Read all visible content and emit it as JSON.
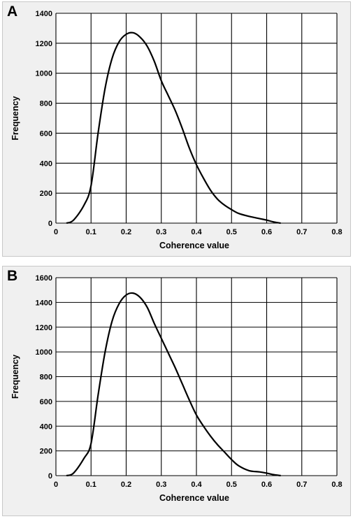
{
  "panels": [
    {
      "label": "A",
      "chart_data": {
        "type": "line",
        "title": "",
        "xlabel": "Coherence value",
        "ylabel": "Frequency",
        "xlim": [
          0,
          0.8
        ],
        "ylim": [
          0,
          1400
        ],
        "x_ticks": [
          "0",
          "0.1",
          "0.2",
          "0.3",
          "0.4",
          "0.5",
          "0.6",
          "0.7",
          "0.8"
        ],
        "y_ticks": [
          "0",
          "200",
          "400",
          "600",
          "800",
          "1000",
          "1200",
          "1400"
        ],
        "grid": true,
        "series": [
          {
            "color": "#000000",
            "points": [
              [
                0.03,
                0
              ],
              [
                0.05,
                20
              ],
              [
                0.08,
                120
              ],
              [
                0.1,
                250
              ],
              [
                0.12,
                600
              ],
              [
                0.14,
                900
              ],
              [
                0.16,
                1100
              ],
              [
                0.18,
                1210
              ],
              [
                0.2,
                1260
              ],
              [
                0.22,
                1270
              ],
              [
                0.24,
                1240
              ],
              [
                0.26,
                1180
              ],
              [
                0.28,
                1080
              ],
              [
                0.3,
                950
              ],
              [
                0.32,
                850
              ],
              [
                0.34,
                750
              ],
              [
                0.36,
                630
              ],
              [
                0.38,
                500
              ],
              [
                0.4,
                390
              ],
              [
                0.42,
                300
              ],
              [
                0.44,
                220
              ],
              [
                0.46,
                160
              ],
              [
                0.48,
                120
              ],
              [
                0.5,
                90
              ],
              [
                0.52,
                65
              ],
              [
                0.55,
                45
              ],
              [
                0.58,
                30
              ],
              [
                0.6,
                20
              ],
              [
                0.62,
                8
              ],
              [
                0.64,
                0
              ]
            ]
          }
        ]
      }
    },
    {
      "label": "B",
      "chart_data": {
        "type": "line",
        "title": "",
        "xlabel": "Coherence value",
        "ylabel": "Frequency",
        "xlim": [
          0,
          0.8
        ],
        "ylim": [
          0,
          1600
        ],
        "x_ticks": [
          "0",
          "0.1",
          "0.2",
          "0.3",
          "0.4",
          "0.5",
          "0.6",
          "0.7",
          "0.8"
        ],
        "y_ticks": [
          "0",
          "200",
          "400",
          "600",
          "800",
          "1000",
          "1200",
          "1400",
          "1600"
        ],
        "grid": true,
        "series": [
          {
            "color": "#000000",
            "points": [
              [
                0.03,
                0
              ],
              [
                0.05,
                20
              ],
              [
                0.08,
                140
              ],
              [
                0.1,
                260
              ],
              [
                0.12,
                650
              ],
              [
                0.14,
                1000
              ],
              [
                0.16,
                1250
              ],
              [
                0.18,
                1390
              ],
              [
                0.2,
                1460
              ],
              [
                0.22,
                1475
              ],
              [
                0.24,
                1440
              ],
              [
                0.26,
                1360
              ],
              [
                0.28,
                1230
              ],
              [
                0.3,
                1110
              ],
              [
                0.32,
                990
              ],
              [
                0.34,
                870
              ],
              [
                0.36,
                740
              ],
              [
                0.38,
                610
              ],
              [
                0.4,
                490
              ],
              [
                0.42,
                400
              ],
              [
                0.44,
                320
              ],
              [
                0.46,
                250
              ],
              [
                0.48,
                190
              ],
              [
                0.5,
                130
              ],
              [
                0.52,
                80
              ],
              [
                0.55,
                40
              ],
              [
                0.58,
                30
              ],
              [
                0.6,
                20
              ],
              [
                0.62,
                8
              ],
              [
                0.64,
                0
              ]
            ]
          }
        ]
      }
    }
  ]
}
